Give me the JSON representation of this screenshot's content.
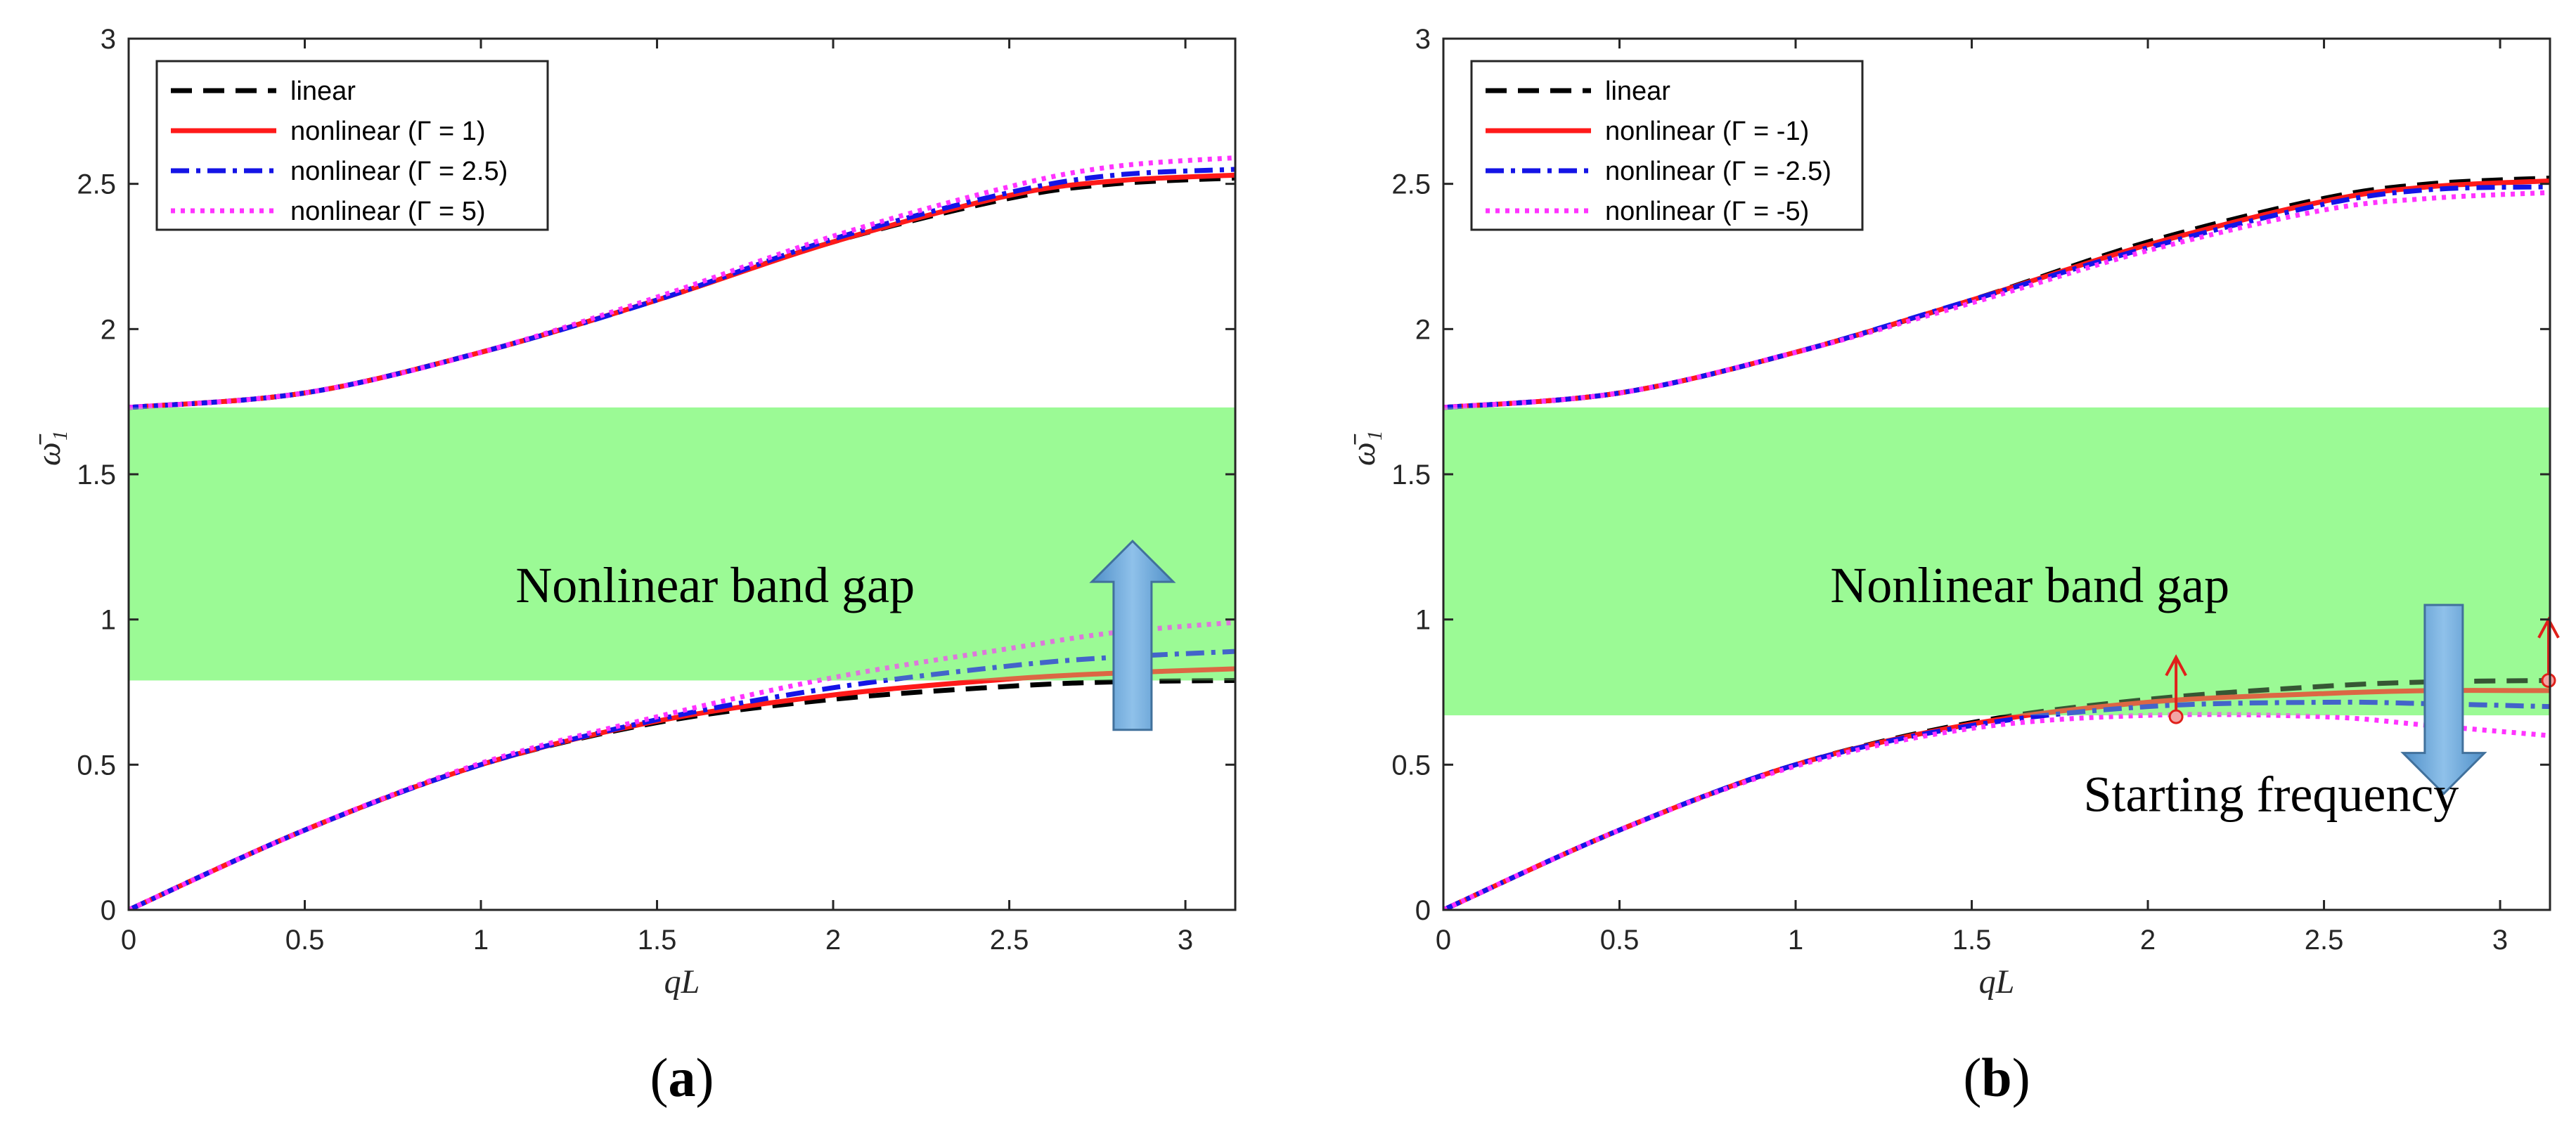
{
  "chart_data": [
    {
      "type": "line",
      "panel": "a",
      "caption": "(a)",
      "caption_letter": "a",
      "title": "",
      "xlabel": "qL",
      "ylabel": "ω̄₁",
      "xlim": [
        0,
        3.14159
      ],
      "ylim": [
        0,
        3
      ],
      "xticks": [
        0,
        0.5,
        1,
        1.5,
        2,
        2.5,
        3
      ],
      "yticks": [
        0,
        0.5,
        1,
        1.5,
        2,
        2.5,
        3
      ],
      "xtick_labels": [
        "0",
        "0.5",
        "1",
        "1.5",
        "2",
        "2.5",
        "3"
      ],
      "ytick_labels": [
        "0",
        "0.5",
        "1",
        "1.5",
        "2",
        "2.5",
        "3"
      ],
      "band": {
        "y0": 0.79,
        "y1": 1.73,
        "color": "#9cfa96",
        "label": "Nonlinear band gap"
      },
      "arrow": {
        "direction": "up",
        "x": 2.85,
        "y_from": 0.62,
        "y_to": 1.27,
        "color": "#6fa8d9"
      },
      "legend": {
        "placement": "top-left",
        "entries": [
          {
            "label": "linear",
            "color": "#000000",
            "style": "dashed"
          },
          {
            "label": "nonlinear (Γ = 1)",
            "color": "#ff1a1a",
            "style": "solid"
          },
          {
            "label": "nonlinear (Γ = 2.5)",
            "color": "#1414e6",
            "style": "dashdot"
          },
          {
            "label": "nonlinear (Γ = 5)",
            "color": "#ff33ff",
            "style": "dotted"
          }
        ]
      },
      "series": [
        {
          "name": "linear",
          "color": "#000000",
          "style": "dashed",
          "lower": {
            "x": [
              0,
              0.5,
              1.0,
              1.5,
              2.0,
              2.5,
              2.8,
              3.14159
            ],
            "y": [
              0,
              0.275,
              0.5,
              0.645,
              0.725,
              0.77,
              0.785,
              0.79
            ]
          },
          "upper": {
            "x": [
              0,
              0.5,
              1.0,
              1.5,
              2.0,
              2.5,
              2.8,
              3.14159
            ],
            "y": [
              1.73,
              1.78,
              1.92,
              2.1,
              2.3,
              2.45,
              2.5,
              2.52
            ]
          }
        },
        {
          "name": "nonlinear (Γ = 1)",
          "color": "#ff1a1a",
          "style": "solid",
          "lower": {
            "x": [
              0,
              0.5,
              1.0,
              1.5,
              2.0,
              2.5,
              2.8,
              3.14159
            ],
            "y": [
              0,
              0.275,
              0.5,
              0.65,
              0.74,
              0.795,
              0.815,
              0.83
            ]
          },
          "upper": {
            "x": [
              0,
              0.5,
              1.0,
              1.5,
              2.0,
              2.5,
              2.8,
              3.14159
            ],
            "y": [
              1.73,
              1.78,
              1.92,
              2.1,
              2.3,
              2.46,
              2.51,
              2.53
            ]
          }
        },
        {
          "name": "nonlinear (Γ = 2.5)",
          "color": "#1414e6",
          "style": "dashdot",
          "lower": {
            "x": [
              0,
              0.5,
              1.0,
              1.5,
              2.0,
              2.5,
              2.8,
              3.14159
            ],
            "y": [
              0,
              0.275,
              0.5,
              0.655,
              0.765,
              0.84,
              0.87,
              0.89
            ]
          },
          "upper": {
            "x": [
              0,
              0.5,
              1.0,
              1.5,
              2.0,
              2.5,
              2.8,
              3.14159
            ],
            "y": [
              1.73,
              1.78,
              1.92,
              2.1,
              2.31,
              2.47,
              2.53,
              2.55
            ]
          }
        },
        {
          "name": "nonlinear (Γ = 5)",
          "color": "#ff33ff",
          "style": "dotted",
          "lower": {
            "x": [
              0,
              0.5,
              1.0,
              1.5,
              2.0,
              2.5,
              2.8,
              3.14159
            ],
            "y": [
              0,
              0.275,
              0.505,
              0.665,
              0.8,
              0.9,
              0.955,
              0.99
            ]
          },
          "upper": {
            "x": [
              0,
              0.5,
              1.0,
              1.5,
              2.0,
              2.5,
              2.8,
              3.14159
            ],
            "y": [
              1.73,
              1.78,
              1.92,
              2.11,
              2.32,
              2.49,
              2.56,
              2.59
            ]
          }
        }
      ]
    },
    {
      "type": "line",
      "panel": "b",
      "caption": "(b)",
      "caption_letter": "b",
      "title": "",
      "xlabel": "qL",
      "ylabel": "ω̄₁",
      "xlim": [
        0,
        3.14159
      ],
      "ylim": [
        0,
        3
      ],
      "xticks": [
        0,
        0.5,
        1,
        1.5,
        2,
        2.5,
        3
      ],
      "yticks": [
        0,
        0.5,
        1,
        1.5,
        2,
        2.5,
        3
      ],
      "xtick_labels": [
        "0",
        "0.5",
        "1",
        "1.5",
        "2",
        "2.5",
        "3"
      ],
      "ytick_labels": [
        "0",
        "0.5",
        "1",
        "1.5",
        "2",
        "2.5",
        "3"
      ],
      "band": {
        "y0": 0.67,
        "y1": 1.73,
        "color": "#9cfa96",
        "label": "Nonlinear band gap"
      },
      "arrow": {
        "direction": "down",
        "x": 2.84,
        "y_from": 1.05,
        "y_to": 0.4,
        "color": "#6fa8d9"
      },
      "annotation": {
        "text": "Starting frequency"
      },
      "markers": [
        {
          "x": 2.08,
          "y": 0.665,
          "arrow_to": 0.87,
          "color": "#e0201a"
        },
        {
          "x": 3.14159,
          "y": 0.79,
          "arrow_to": 1.0,
          "color": "#e0201a"
        }
      ],
      "legend": {
        "placement": "top-left",
        "entries": [
          {
            "label": "linear",
            "color": "#000000",
            "style": "dashed"
          },
          {
            "label": "nonlinear (Γ = -1)",
            "color": "#ff1a1a",
            "style": "solid"
          },
          {
            "label": "nonlinear (Γ = -2.5)",
            "color": "#1414e6",
            "style": "dashdot"
          },
          {
            "label": "nonlinear (Γ = -5)",
            "color": "#ff33ff",
            "style": "dotted"
          }
        ]
      },
      "series": [
        {
          "name": "linear",
          "color": "#000000",
          "style": "dashed",
          "lower": {
            "x": [
              0,
              0.5,
              1.0,
              1.5,
              2.0,
              2.5,
              2.8,
              3.14159
            ],
            "y": [
              0,
              0.275,
              0.5,
              0.645,
              0.725,
              0.77,
              0.785,
              0.79
            ]
          },
          "upper": {
            "x": [
              0,
              0.5,
              1.0,
              1.5,
              2.0,
              2.5,
              2.8,
              3.14159
            ],
            "y": [
              1.73,
              1.78,
              1.92,
              2.1,
              2.3,
              2.45,
              2.5,
              2.52
            ]
          }
        },
        {
          "name": "nonlinear (Γ = -1)",
          "color": "#ff1a1a",
          "style": "solid",
          "lower": {
            "x": [
              0,
              0.5,
              1.0,
              1.5,
              2.0,
              2.5,
              2.8,
              3.14159
            ],
            "y": [
              0,
              0.275,
              0.5,
              0.64,
              0.715,
              0.745,
              0.755,
              0.755
            ]
          },
          "upper": {
            "x": [
              0,
              0.5,
              1.0,
              1.5,
              2.0,
              2.5,
              2.8,
              3.14159
            ],
            "y": [
              1.73,
              1.78,
              1.92,
              2.1,
              2.29,
              2.44,
              2.49,
              2.51
            ]
          }
        },
        {
          "name": "nonlinear (Γ = -2.5)",
          "color": "#1414e6",
          "style": "dashdot",
          "lower": {
            "x": [
              0,
              0.5,
              1.0,
              1.5,
              2.0,
              2.5,
              2.8,
              3.14159
            ],
            "y": [
              0,
              0.275,
              0.5,
              0.635,
              0.7,
              0.715,
              0.71,
              0.7
            ]
          },
          "upper": {
            "x": [
              0,
              0.5,
              1.0,
              1.5,
              2.0,
              2.5,
              2.8,
              3.14159
            ],
            "y": [
              1.73,
              1.78,
              1.92,
              2.1,
              2.28,
              2.43,
              2.48,
              2.49
            ]
          }
        },
        {
          "name": "nonlinear (Γ = -5)",
          "color": "#ff33ff",
          "style": "dotted",
          "lower": {
            "x": [
              0,
              0.5,
              1.0,
              1.5,
              2.0,
              2.5,
              2.8,
              3.14159
            ],
            "y": [
              0,
              0.275,
              0.495,
              0.625,
              0.67,
              0.665,
              0.635,
              0.6
            ]
          },
          "upper": {
            "x": [
              0,
              0.5,
              1.0,
              1.5,
              2.0,
              2.5,
              2.8,
              3.14159
            ],
            "y": [
              1.73,
              1.78,
              1.92,
              2.09,
              2.27,
              2.41,
              2.45,
              2.47
            ]
          }
        }
      ]
    }
  ]
}
